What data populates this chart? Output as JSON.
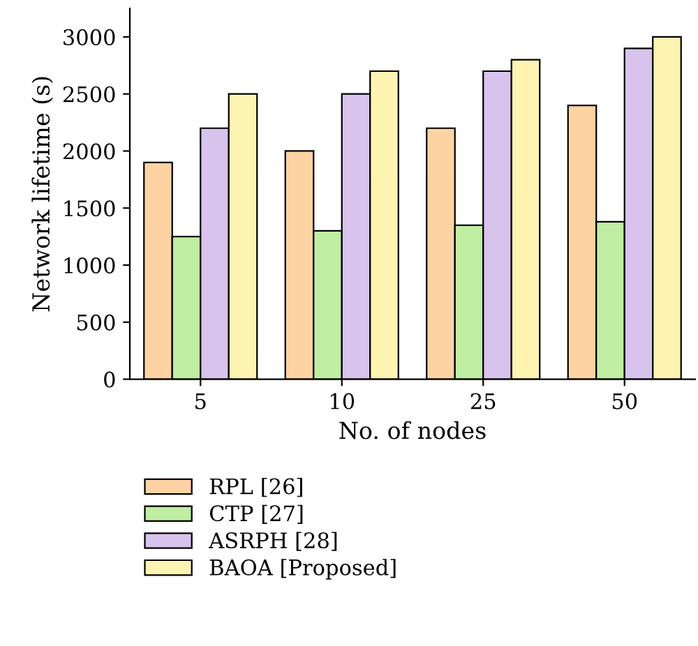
{
  "chart_data": {
    "type": "bar",
    "xlabel": "No. of nodes",
    "ylabel": "Network lifetime (s)",
    "categories": [
      "5",
      "10",
      "25",
      "50"
    ],
    "series": [
      {
        "name": "RPL [26]",
        "color": "#fdd3a3",
        "values": [
          1900,
          2000,
          2200,
          2400
        ]
      },
      {
        "name": "CTP [27]",
        "color": "#c0eea2",
        "values": [
          1250,
          1300,
          1350,
          1380
        ]
      },
      {
        "name": "ASRPH [28]",
        "color": "#d8c3ec",
        "values": [
          2200,
          2500,
          2700,
          2900
        ]
      },
      {
        "name": "BAOA [Proposed]",
        "color": "#fdf4b2",
        "values": [
          2500,
          2700,
          2800,
          3000
        ]
      }
    ],
    "ylim": [
      0,
      3250
    ],
    "yticks": [
      0,
      500,
      1000,
      1500,
      2000,
      2500,
      3000
    ],
    "grid": false,
    "legend": "bottom"
  }
}
